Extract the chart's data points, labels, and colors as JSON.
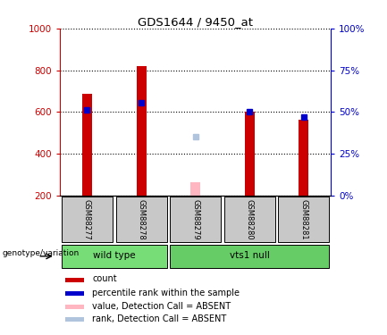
{
  "title": "GDS1644 / 9450_at",
  "samples": [
    "GSM88277",
    "GSM88278",
    "GSM88279",
    "GSM88280",
    "GSM88281"
  ],
  "count_values": [
    685,
    820,
    null,
    600,
    565
  ],
  "rank_values": [
    610,
    645,
    null,
    600,
    575
  ],
  "absent_value": [
    null,
    null,
    265,
    null,
    null
  ],
  "absent_rank": [
    null,
    null,
    480,
    null,
    null
  ],
  "ylim_left": [
    200,
    1000
  ],
  "ylim_right": [
    0,
    100
  ],
  "yticks_left": [
    200,
    400,
    600,
    800,
    1000
  ],
  "yticks_right": [
    0,
    25,
    50,
    75,
    100
  ],
  "ytick_right_labels": [
    "0%",
    "25%",
    "50%",
    "75%",
    "100%"
  ],
  "count_color": "#CC0000",
  "rank_color": "#0000CC",
  "absent_value_color": "#FFB6C1",
  "absent_rank_color": "#B0C4DE",
  "background_color": "#ffffff",
  "plot_bg": "#ffffff",
  "sample_label_bg": "#C8C8C8",
  "group_defs": [
    {
      "name": "wild type",
      "start": 0,
      "end": 1,
      "color": "#77DD77"
    },
    {
      "name": "vts1 null",
      "start": 2,
      "end": 4,
      "color": "#66CC66"
    }
  ],
  "legend_items": [
    {
      "label": "count",
      "color": "#CC0000"
    },
    {
      "label": "percentile rank within the sample",
      "color": "#0000CC"
    },
    {
      "label": "value, Detection Call = ABSENT",
      "color": "#FFB6C1"
    },
    {
      "label": "rank, Detection Call = ABSENT",
      "color": "#B0C4DE"
    }
  ],
  "genotype_label": "genotype/variation",
  "bar_width": 0.18
}
